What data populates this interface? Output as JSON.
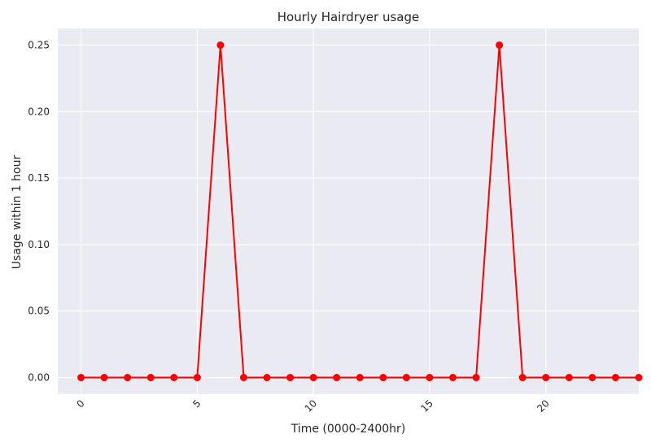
{
  "chart_data": {
    "type": "line",
    "title": "Hourly Hairdryer usage",
    "xlabel": "Time (0000-2400hr)",
    "ylabel": "Usage within 1 hour",
    "xlim": [
      -1,
      24
    ],
    "ylim": [
      -0.0125,
      0.2625
    ],
    "xticks": [
      0,
      5,
      10,
      15,
      20
    ],
    "xtick_labels": [
      "0",
      "5",
      "10",
      "15",
      "20"
    ],
    "yticks": [
      0.0,
      0.05,
      0.1,
      0.15,
      0.2,
      0.25
    ],
    "ytick_labels": [
      "0.00",
      "0.05",
      "0.10",
      "0.15",
      "0.20",
      "0.25"
    ],
    "xtick_rotation_deg": 45,
    "grid": true,
    "series": [
      {
        "color": "#ff0000",
        "marker": "circle",
        "x": [
          0,
          1,
          2,
          3,
          4,
          5,
          6,
          7,
          8,
          9,
          10,
          11,
          12,
          13,
          14,
          15,
          16,
          17,
          18,
          19,
          20,
          21,
          22,
          23,
          24
        ],
        "y": [
          0,
          0,
          0,
          0,
          0,
          0,
          0.25,
          0,
          0,
          0,
          0,
          0,
          0,
          0,
          0,
          0,
          0,
          0,
          0.25,
          0,
          0,
          0,
          0,
          0,
          0
        ]
      }
    ]
  }
}
